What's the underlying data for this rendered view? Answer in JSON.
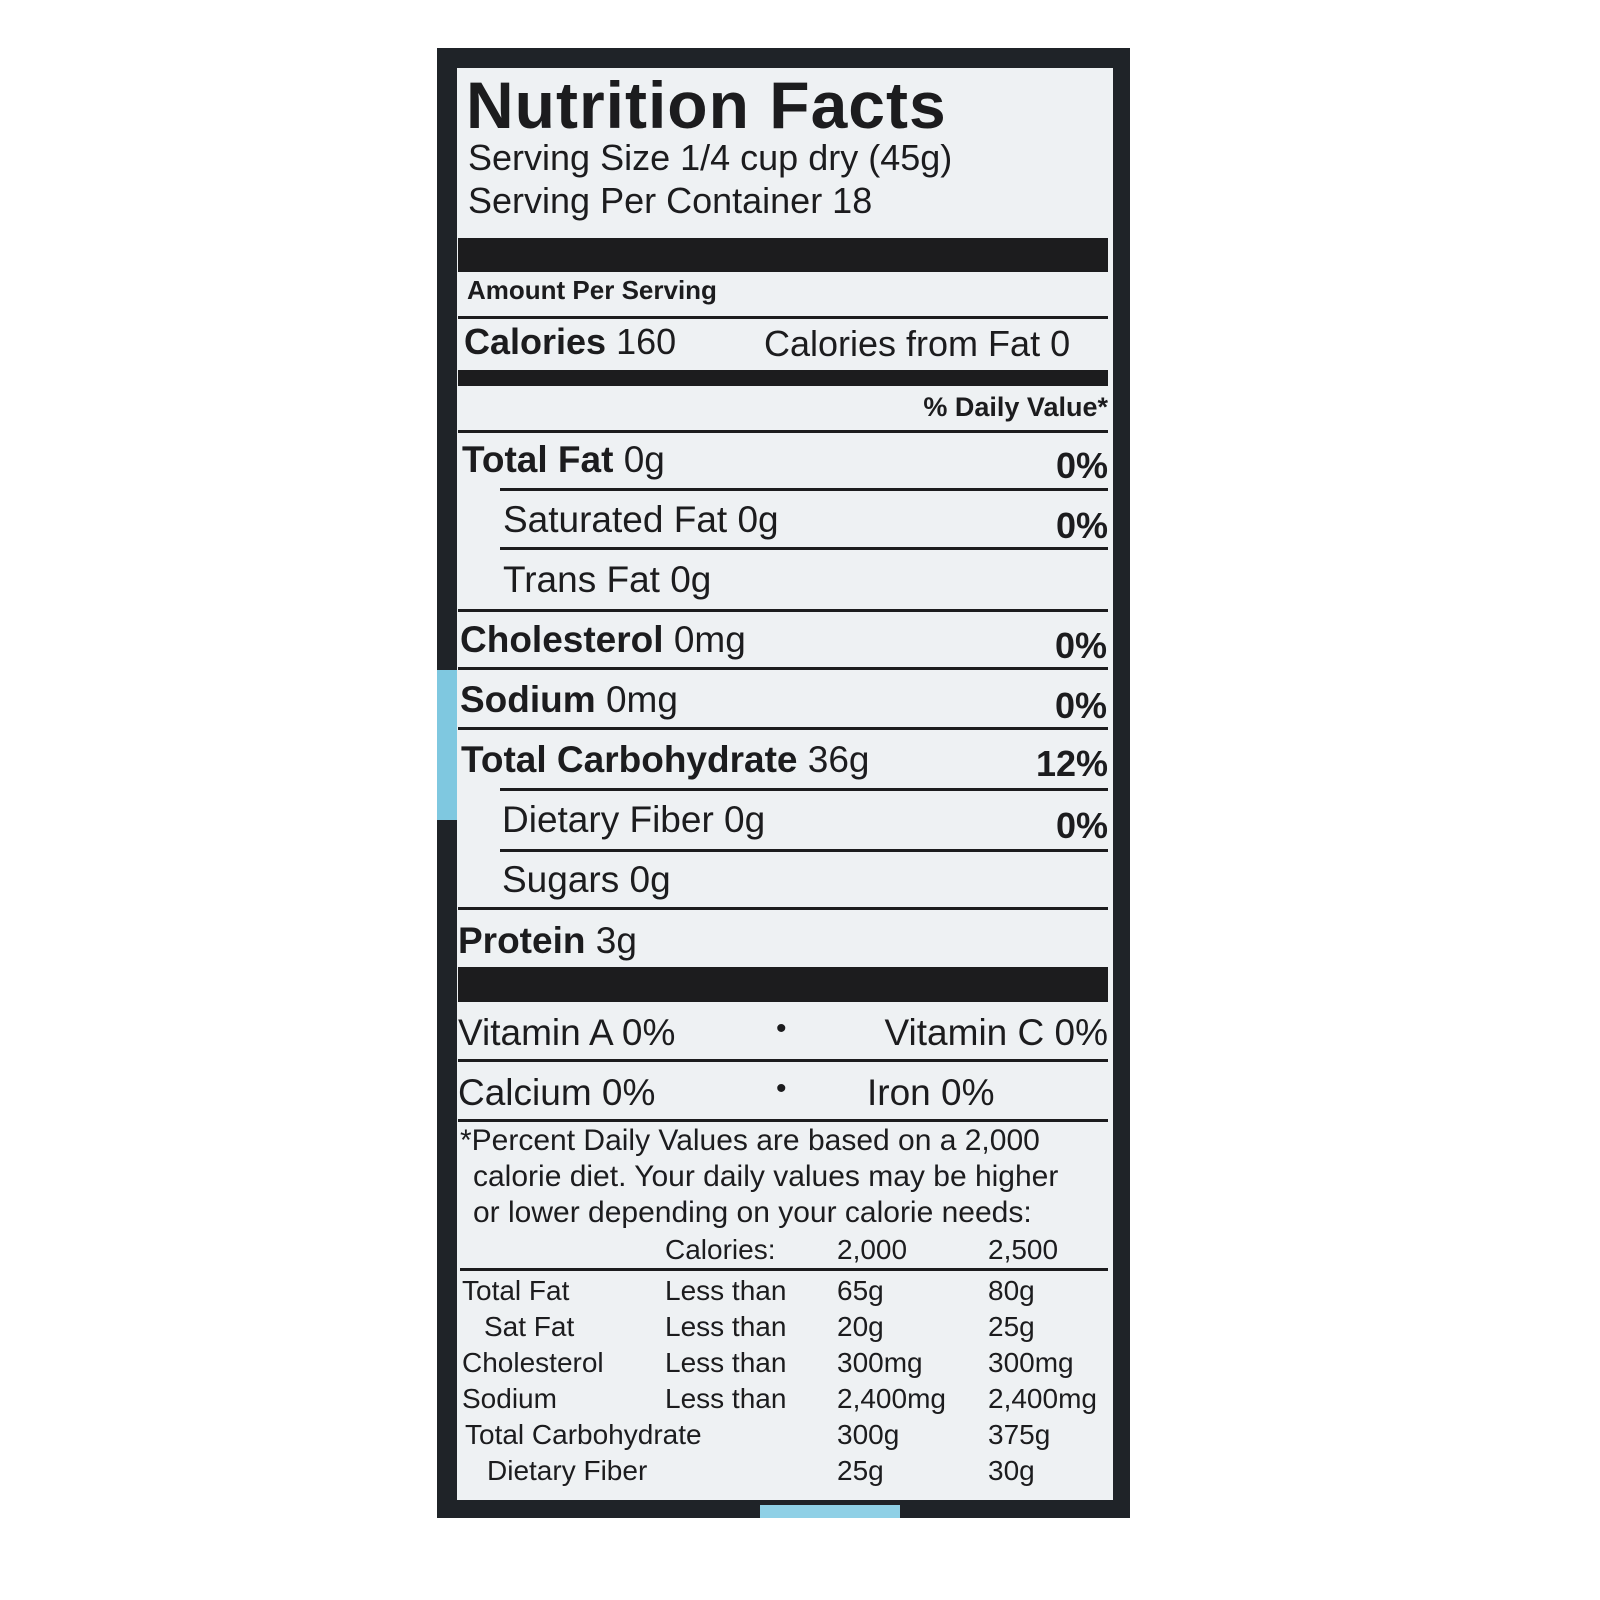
{
  "title": "Nutrition Facts",
  "serving_size": "Serving Size 1/4 cup dry (45g)",
  "servings_per_container": "Serving Per Container 18",
  "amount_per_serving": "Amount Per Serving",
  "calories": {
    "label": "Calories",
    "value": "160",
    "from_fat": "Calories from Fat 0"
  },
  "daily_value_header": "% Daily Value*",
  "nutrients": [
    {
      "label": "Total Fat",
      "amount": "0g",
      "dv": "0%"
    },
    {
      "label": "Saturated Fat 0g",
      "amount": "",
      "dv": "0%"
    },
    {
      "label": "Trans Fat 0g",
      "amount": "",
      "dv": ""
    },
    {
      "label": "Cholesterol",
      "amount": "0mg",
      "dv": "0%"
    },
    {
      "label": "Sodium",
      "amount": "0mg",
      "dv": "0%"
    },
    {
      "label": "Total Carbohydrate",
      "amount": "36g",
      "dv": "12%"
    },
    {
      "label": "Dietary Fiber 0g",
      "amount": "",
      "dv": "0%"
    },
    {
      "label": "Sugars 0g",
      "amount": "",
      "dv": ""
    },
    {
      "label": "Protein",
      "amount": "3g",
      "dv": ""
    }
  ],
  "vitamins": {
    "vit_a": "Vitamin A 0%",
    "vit_c": "Vitamin C 0%",
    "calcium": "Calcium 0%",
    "iron": "Iron 0%",
    "bullet": "•"
  },
  "footnote": [
    "*Percent Daily Values are based on a 2,000",
    "calorie diet. Your daily values may be higher",
    "or lower depending on your calorie needs:"
  ],
  "dv_table": {
    "header": [
      "Calories:",
      "2,000",
      "2,500"
    ],
    "rows": [
      [
        "Total Fat",
        "Less than",
        "65g",
        "80g"
      ],
      [
        "Sat Fat",
        "Less than",
        "20g",
        "25g"
      ],
      [
        "Cholesterol",
        "Less than",
        "300mg",
        "300mg"
      ],
      [
        "Sodium",
        "Less than",
        "2,400mg",
        "2,400mg"
      ],
      [
        "Total Carbohydrate",
        "",
        "300g",
        "375g"
      ],
      [
        "Dietary Fiber",
        "",
        "25g",
        "30g"
      ]
    ]
  }
}
